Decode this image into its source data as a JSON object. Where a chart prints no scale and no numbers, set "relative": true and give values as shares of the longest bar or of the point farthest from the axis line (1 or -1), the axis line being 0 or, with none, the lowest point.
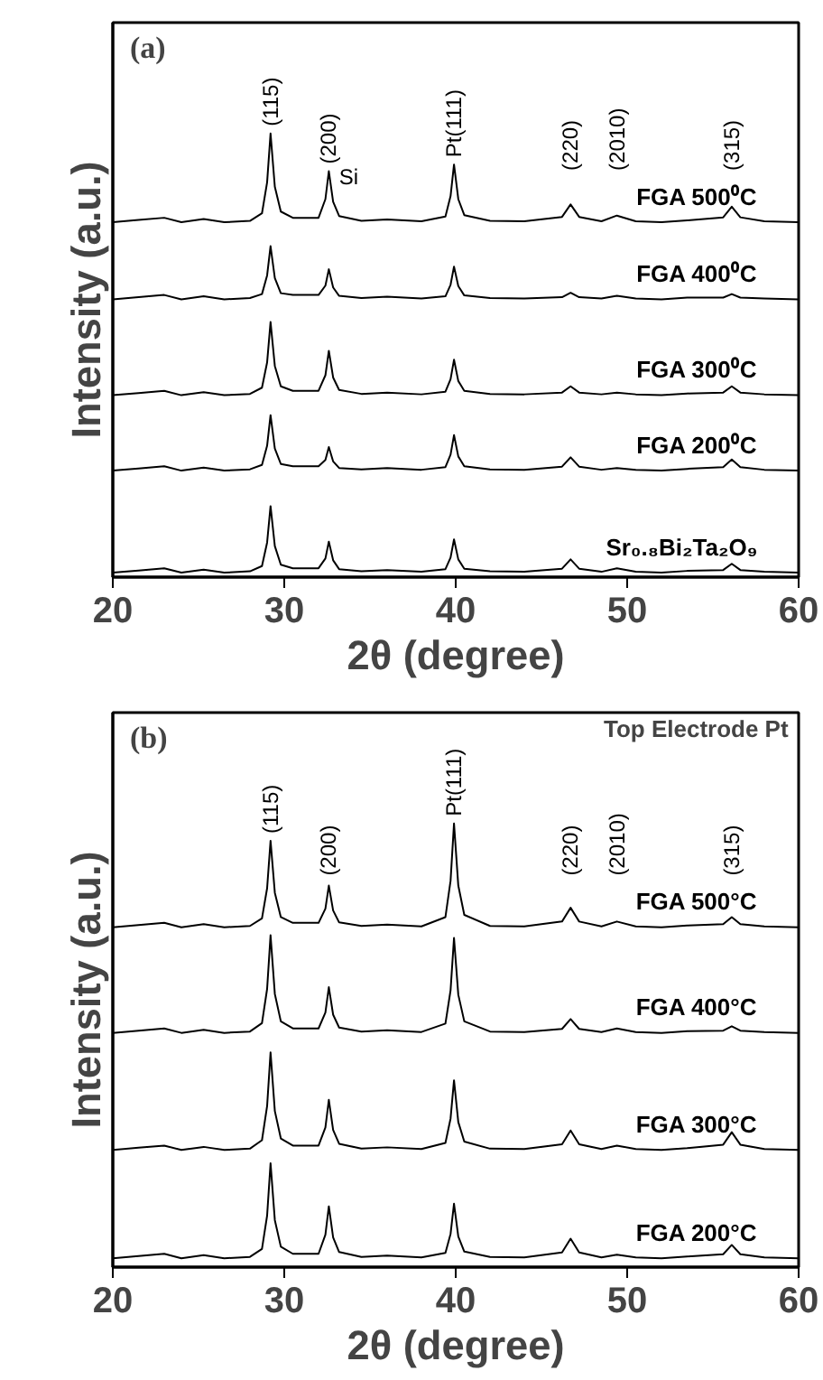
{
  "chart_data": [
    {
      "type": "line",
      "title": "(a)",
      "xlabel": "2θ (degree)",
      "ylabel": "Intensity (a.u.)",
      "relative": true,
      "tick_labels": "x",
      "grid": false,
      "marker": "none",
      "line_style": "solid",
      "xlim": [
        20,
        60
      ],
      "xticks": [
        20,
        30,
        40,
        50,
        60
      ],
      "x": [
        20,
        21.5,
        23,
        24,
        25.3,
        26.5,
        28,
        28.7,
        29.0,
        29.2,
        29.45,
        29.8,
        30.5,
        32,
        32.4,
        32.6,
        32.85,
        33.2,
        34.5,
        36,
        38,
        39.4,
        39.7,
        39.9,
        40.15,
        40.5,
        42,
        44,
        46.2,
        46.7,
        47.2,
        48.5,
        49.4,
        50.5,
        52,
        53.5,
        55.6,
        56.1,
        56.6,
        58,
        60
      ],
      "series": [
        {
          "name": "FGA 500⁰C",
          "color": "#000000",
          "values": [
            0.8,
            0.805,
            0.81,
            0.8,
            0.807,
            0.8,
            0.803,
            0.82,
            0.89,
            1.0,
            0.88,
            0.824,
            0.81,
            0.81,
            0.852,
            0.915,
            0.846,
            0.814,
            0.803,
            0.806,
            0.802,
            0.813,
            0.859,
            0.93,
            0.852,
            0.816,
            0.803,
            0.802,
            0.812,
            0.84,
            0.812,
            0.802,
            0.815,
            0.802,
            0.8,
            0.804,
            0.811,
            0.835,
            0.811,
            0.802,
            0.8
          ]
        },
        {
          "name": "FGA 400⁰C",
          "color": "#000000",
          "values": [
            0.626,
            0.631,
            0.636,
            0.626,
            0.633,
            0.626,
            0.629,
            0.638,
            0.68,
            0.746,
            0.674,
            0.64,
            0.636,
            0.636,
            0.657,
            0.694,
            0.653,
            0.634,
            0.629,
            0.632,
            0.628,
            0.633,
            0.659,
            0.7,
            0.656,
            0.635,
            0.629,
            0.628,
            0.631,
            0.641,
            0.631,
            0.628,
            0.634,
            0.628,
            0.626,
            0.63,
            0.63,
            0.638,
            0.63,
            0.628,
            0.626
          ]
        },
        {
          "name": "FGA 300⁰C",
          "color": "#000000",
          "values": [
            0.41,
            0.415,
            0.42,
            0.41,
            0.417,
            0.41,
            0.413,
            0.427,
            0.484,
            0.575,
            0.476,
            0.43,
            0.42,
            0.42,
            0.455,
            0.51,
            0.45,
            0.422,
            0.413,
            0.416,
            0.412,
            0.418,
            0.446,
            0.49,
            0.442,
            0.42,
            0.413,
            0.412,
            0.416,
            0.43,
            0.416,
            0.412,
            0.416,
            0.412,
            0.41,
            0.414,
            0.416,
            0.43,
            0.416,
            0.412,
            0.41
          ]
        },
        {
          "name": "FGA 200⁰C",
          "color": "#000000",
          "values": [
            0.24,
            0.245,
            0.25,
            0.24,
            0.247,
            0.24,
            0.243,
            0.253,
            0.296,
            0.365,
            0.29,
            0.255,
            0.25,
            0.25,
            0.264,
            0.293,
            0.261,
            0.246,
            0.243,
            0.246,
            0.242,
            0.248,
            0.276,
            0.32,
            0.272,
            0.25,
            0.243,
            0.242,
            0.249,
            0.27,
            0.249,
            0.242,
            0.246,
            0.242,
            0.24,
            0.244,
            0.248,
            0.265,
            0.248,
            0.242,
            0.24
          ]
        },
        {
          "name": "Sr₀.₈Bi₂Ta₂O₉",
          "color": "#000000",
          "values": [
            0.01,
            0.015,
            0.02,
            0.01,
            0.017,
            0.01,
            0.013,
            0.025,
            0.078,
            0.16,
            0.07,
            0.028,
            0.02,
            0.02,
            0.042,
            0.08,
            0.038,
            0.018,
            0.013,
            0.016,
            0.012,
            0.018,
            0.044,
            0.085,
            0.04,
            0.019,
            0.013,
            0.012,
            0.019,
            0.04,
            0.019,
            0.012,
            0.02,
            0.012,
            0.01,
            0.014,
            0.016,
            0.03,
            0.016,
            0.012,
            0.01
          ]
        }
      ],
      "annotations": [
        {
          "text": "(115)",
          "x": 29.2,
          "y": 1.0
        },
        {
          "text": "(200)",
          "x": 32.6,
          "y": 0.915
        },
        "Si",
        {
          "text": "Pt(111)",
          "x": 39.9,
          "y": 0.93
        },
        {
          "text": "(220)",
          "x": 46.7,
          "y": 0.84
        },
        {
          "text": "(2010)",
          "x": 49.4,
          "y": 0.815
        },
        {
          "text": "(315)",
          "x": 56.1,
          "y": 0.835
        }
      ]
    },
    {
      "type": "line",
      "title": "(b)",
      "subtitle": "Top Electrode Pt",
      "xlabel": "2θ (degree)",
      "ylabel": "Intensity (a.u.)",
      "relative": true,
      "tick_labels": "x",
      "grid": false,
      "marker": "none",
      "line_style": "solid",
      "xlim": [
        20,
        60
      ],
      "xticks": [
        20,
        30,
        40,
        50,
        60
      ],
      "x": [
        20,
        21.5,
        23,
        24,
        25.3,
        26.5,
        28,
        28.7,
        29.0,
        29.2,
        29.45,
        29.8,
        30.5,
        32,
        32.4,
        32.6,
        32.85,
        33.2,
        34.5,
        36,
        38,
        39.4,
        39.7,
        39.9,
        40.15,
        40.5,
        42,
        44,
        46.2,
        46.7,
        47.2,
        48.5,
        49.4,
        50.5,
        52,
        53.5,
        55.6,
        56.1,
        56.6,
        58,
        60
      ],
      "series": [
        {
          "name": "FGA 500°C",
          "color": "#000000",
          "values": [
            0.766,
            0.771,
            0.776,
            0.766,
            0.773,
            0.766,
            0.769,
            0.786,
            0.854,
            0.961,
            0.844,
            0.789,
            0.776,
            0.776,
            0.808,
            0.86,
            0.804,
            0.777,
            0.769,
            0.772,
            0.768,
            0.789,
            0.871,
            1.0,
            0.86,
            0.794,
            0.769,
            0.768,
            0.779,
            0.81,
            0.779,
            0.768,
            0.779,
            0.768,
            0.766,
            0.77,
            0.773,
            0.789,
            0.773,
            0.768,
            0.766
          ]
        },
        {
          "name": "FGA 400°C",
          "color": "#000000",
          "values": [
            0.528,
            0.533,
            0.538,
            0.528,
            0.535,
            0.528,
            0.531,
            0.55,
            0.627,
            0.748,
            0.616,
            0.554,
            0.538,
            0.538,
            0.574,
            0.631,
            0.569,
            0.54,
            0.531,
            0.534,
            0.53,
            0.549,
            0.624,
            0.742,
            0.614,
            0.554,
            0.531,
            0.53,
            0.537,
            0.559,
            0.537,
            0.53,
            0.538,
            0.53,
            0.528,
            0.532,
            0.533,
            0.543,
            0.533,
            0.53,
            0.528
          ]
        },
        {
          "name": "FGA 300°C",
          "color": "#000000",
          "values": [
            0.264,
            0.269,
            0.274,
            0.264,
            0.271,
            0.264,
            0.267,
            0.286,
            0.363,
            0.484,
            0.352,
            0.29,
            0.274,
            0.274,
            0.315,
            0.377,
            0.309,
            0.278,
            0.267,
            0.27,
            0.266,
            0.28,
            0.335,
            0.421,
            0.327,
            0.283,
            0.267,
            0.266,
            0.277,
            0.308,
            0.277,
            0.266,
            0.274,
            0.266,
            0.264,
            0.268,
            0.276,
            0.304,
            0.276,
            0.266,
            0.264
          ]
        },
        {
          "name": "FGA 200°C",
          "color": "#000000",
          "values": [
            0.02,
            0.025,
            0.03,
            0.02,
            0.027,
            0.02,
            0.023,
            0.041,
            0.116,
            0.234,
            0.106,
            0.046,
            0.03,
            0.03,
            0.073,
            0.137,
            0.067,
            0.034,
            0.023,
            0.026,
            0.022,
            0.032,
            0.075,
            0.143,
            0.069,
            0.035,
            0.023,
            0.022,
            0.033,
            0.064,
            0.033,
            0.022,
            0.028,
            0.022,
            0.02,
            0.024,
            0.029,
            0.05,
            0.029,
            0.022,
            0.02
          ]
        }
      ],
      "annotations": [
        {
          "text": "(115)",
          "x": 29.2,
          "y": 0.961
        },
        {
          "text": "(200)",
          "x": 32.6,
          "y": 0.86
        },
        {
          "text": "Pt(111)",
          "x": 39.9,
          "y": 1.0
        },
        {
          "text": "(220)",
          "x": 46.7,
          "y": 0.81
        },
        {
          "text": "(2010)",
          "x": 49.4,
          "y": 0.779
        },
        {
          "text": "(315)",
          "x": 56.1,
          "y": 0.789
        }
      ]
    }
  ]
}
